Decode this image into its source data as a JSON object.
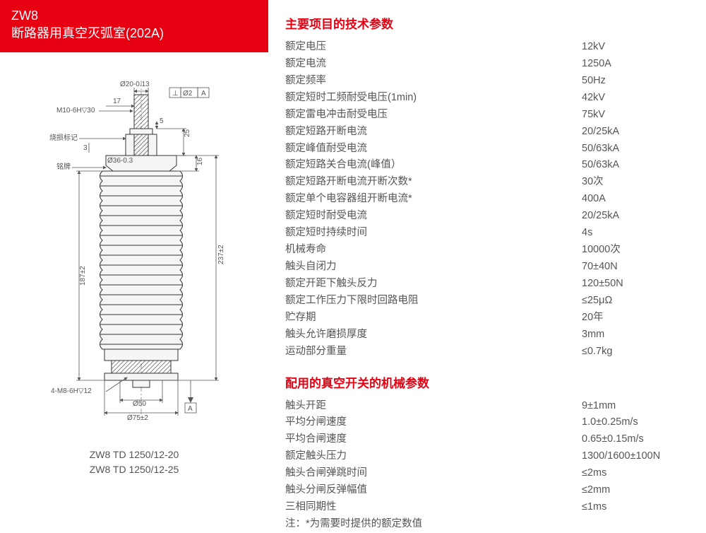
{
  "header": {
    "line1": "ZW8",
    "line2": "断路器用真空灭弧室(202A)"
  },
  "diagram": {
    "labels": {
      "top_dia": "Ø20-0.13",
      "top_off": "17",
      "thread_top": "M10-6H▽30",
      "burn_mark": "烧损标记",
      "plate": "铭牌",
      "neck_dia": "Ø36-0.3",
      "neck_side": "16",
      "neck_top": "25",
      "small5": "5",
      "small3": "3",
      "total_h": "237±2",
      "body_h": "187±2",
      "thread_bot": "4-M8-6H▽12",
      "bot_dia1": "Ø50",
      "bot_dia2": "Ø75±2",
      "tol_box1": "⊥",
      "tol_box2": "Ø2",
      "tol_box3": "A",
      "datum_a": "A"
    },
    "models": {
      "m1": "ZW8 TD 1250/12-20",
      "m2": "ZW8 TD 1250/12-25"
    }
  },
  "section1": {
    "title": "主要项目的技术参数",
    "rows": [
      {
        "label": "额定电压",
        "value": "12kV"
      },
      {
        "label": "额定电流",
        "value": "1250A"
      },
      {
        "label": "额定频率",
        "value": "50Hz"
      },
      {
        "label": "额定短时工频耐受电压(1min)",
        "value": "42kV"
      },
      {
        "label": "额定雷电冲击耐受电压",
        "value": "75kV"
      },
      {
        "label": "额定短路开断电流",
        "value": "20/25kA"
      },
      {
        "label": "额定峰值耐受电流",
        "value": "50/63kA"
      },
      {
        "label": "额定短路关合电流(峰值）",
        "value": "50/63kA"
      },
      {
        "label": "额定短路开断电流开断次数*",
        "value": "30次"
      },
      {
        "label": "额定单个电容器组开断电流*",
        "value": "400A"
      },
      {
        "label": "额定短时耐受电流",
        "value": "20/25kA"
      },
      {
        "label": "额定短时持续时间",
        "value": "4s"
      },
      {
        "label": "机械寿命",
        "value": "10000次"
      },
      {
        "label": "触头自闭力",
        "value": "70±40N"
      },
      {
        "label": "额定开距下触头反力",
        "value": "120±50N"
      },
      {
        "label": "额定工作压力下限时回路电阻",
        "value": "≤25μΩ"
      },
      {
        "label": "贮存期",
        "value": "20年"
      },
      {
        "label": "触头允许磨损厚度",
        "value": "3mm"
      },
      {
        "label": "运动部分重量",
        "value": "≤0.7kg"
      }
    ]
  },
  "section2": {
    "title": "配用的真空开关的机械参数",
    "rows": [
      {
        "label": "触头开距",
        "value": "9±1mm"
      },
      {
        "label": "平均分闸速度",
        "value": "1.0±0.25m/s"
      },
      {
        "label": "平均合闸速度",
        "value": "0.65±0.15m/s"
      },
      {
        "label": "额定触头压力",
        "value": "1300/1600±100N"
      },
      {
        "label": "触头合闸弹跳时间",
        "value": "≤2ms"
      },
      {
        "label": "触头分闸反弹幅值",
        "value": "≤2mm"
      },
      {
        "label": "三相同期性",
        "value": "≤1ms"
      }
    ],
    "note": "注：*为需要时提供的额定数值"
  }
}
